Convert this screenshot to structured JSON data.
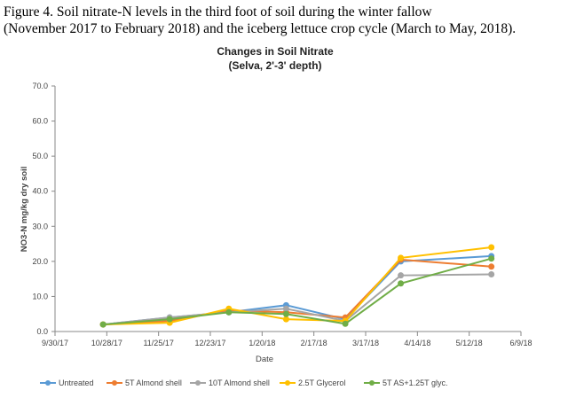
{
  "caption": {
    "line1": "Figure 4. Soil nitrate-N levels in the third foot of soil during the winter fallow",
    "line2": "(November 2017 to February 2018) and the iceberg lettuce crop cycle (March to May, 2018)."
  },
  "chart_data": {
    "type": "line",
    "title": "Changes in Soil Nitrate",
    "subtitle": "(Selva, 2'-3' depth)",
    "xlabel": "Date",
    "ylabel": "NO3-N mg/kg dry soil",
    "ylim": [
      0,
      70
    ],
    "yticks": [
      "0.0",
      "10.0",
      "20.0",
      "30.0",
      "40.0",
      "50.0",
      "60.0",
      "70.0"
    ],
    "xlim": [
      "2017-09-30",
      "2018-06-09"
    ],
    "xticks": [
      "9/30/17",
      "10/28/17",
      "11/25/17",
      "12/23/17",
      "1/20/18",
      "2/17/18",
      "3/17/18",
      "4/14/18",
      "5/12/18",
      "6/9/18"
    ],
    "x": [
      "2017-10-26",
      "2017-12-01",
      "2018-01-02",
      "2018-02-02",
      "2018-03-06",
      "2018-04-05",
      "2018-05-24"
    ],
    "grid": false,
    "legend": "bottom",
    "series": [
      {
        "name": "Untreated",
        "color": "#5b9bd5",
        "values": [
          2.0,
          4.0,
          5.5,
          7.5,
          3.5,
          20.0,
          21.5
        ]
      },
      {
        "name": "5T Almond shell",
        "color": "#ed7d31",
        "values": [
          2.0,
          3.0,
          6.0,
          5.5,
          4.0,
          20.5,
          18.5
        ]
      },
      {
        "name": "10T Almond shell",
        "color": "#a5a5a5",
        "values": [
          2.0,
          4.0,
          5.5,
          6.5,
          3.0,
          16.0,
          16.3
        ]
      },
      {
        "name": "2.5T Glycerol",
        "color": "#ffc000",
        "values": [
          2.0,
          2.5,
          6.5,
          3.5,
          3.0,
          21.0,
          24.0
        ]
      },
      {
        "name": "5T AS+1.25T glyc.",
        "color": "#70ad47",
        "values": [
          2.0,
          3.5,
          5.5,
          5.0,
          2.2,
          13.7,
          20.8
        ]
      }
    ]
  }
}
